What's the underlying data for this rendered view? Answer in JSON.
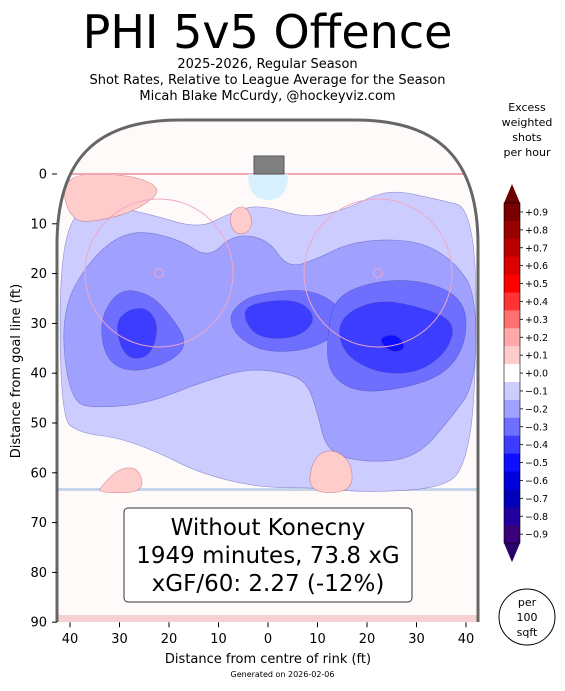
{
  "header": {
    "title": "PHI 5v5 Offence",
    "subtitle_1": "2025-2026, Regular Season",
    "subtitle_2": "Shot Rates, Relative to League Average for the Season",
    "subtitle_3": "Micah Blake McCurdy, @hockeyviz.com"
  },
  "footer": {
    "generated": "Generated on 2026-02-06"
  },
  "colorbar": {
    "title_lines": [
      "Excess",
      "weighted",
      "shots",
      "per hour"
    ],
    "ticks": [
      "+0.9",
      "+0.8",
      "+0.7",
      "+0.6",
      "+0.5",
      "+0.4",
      "+0.3",
      "+0.2",
      "+0.1",
      "+0.0",
      "−0.1",
      "−0.2",
      "−0.3",
      "−0.4",
      "−0.5",
      "−0.6",
      "−0.7",
      "−0.8",
      "−0.9"
    ],
    "colors": [
      "#780000",
      "#990000",
      "#bb0000",
      "#dd0000",
      "#ff0000",
      "#ff3333",
      "#ff7070",
      "#ffa8a8",
      "#ffcccc",
      "#ffffff",
      "#ccccff",
      "#a0a0ff",
      "#6f6fff",
      "#3d3dff",
      "#0f0fff",
      "#0000dd",
      "#0000bb",
      "#22009f",
      "#3a0078"
    ],
    "top_color": "#6a0000",
    "bottom_color": "#2a006a"
  },
  "badge": {
    "lines": [
      "per",
      "100",
      "sqft"
    ]
  },
  "infobox": {
    "line1": "Without Konecny",
    "line2": "1949 minutes, 73.8 xG",
    "line3": "xGF/60: 2.27 (-12%)"
  },
  "chart_data": {
    "type": "heatmap",
    "title": "PHI 5v5 Offence",
    "xlabel": "Distance from centre of rink (ft)",
    "ylabel": "Distance from goal line (ft)",
    "xlim": [
      -42.5,
      42.5
    ],
    "ylim": [
      90,
      -11
    ],
    "x_ticks": [
      -40,
      -30,
      -20,
      -10,
      0,
      10,
      20,
      30,
      40
    ],
    "x_tick_labels": [
      "40",
      "30",
      "20",
      "10",
      "0",
      "10",
      "20",
      "30",
      "40"
    ],
    "y_ticks": [
      0,
      10,
      20,
      30,
      40,
      50,
      60,
      70,
      80,
      90
    ],
    "y_tick_labels": [
      "0",
      "10",
      "20",
      "30",
      "40",
      "50",
      "60",
      "70",
      "80",
      "90"
    ],
    "value_unit": "Excess weighted shots per hour per 100 sqft",
    "levels": [
      0.9,
      0.8,
      0.7,
      0.6,
      0.5,
      0.4,
      0.3,
      0.2,
      0.1,
      0.0,
      -0.1,
      -0.2,
      -0.3,
      -0.4,
      -0.5,
      -0.6,
      -0.7,
      -0.8,
      -0.9
    ],
    "regions": [
      {
        "level": -0.1,
        "points": [
          [
            -42,
            10
          ],
          [
            -34,
            6
          ],
          [
            -24,
            8
          ],
          [
            -14,
            11
          ],
          [
            -8,
            8
          ],
          [
            -2,
            6
          ],
          [
            8,
            9
          ],
          [
            16,
            7
          ],
          [
            24,
            3
          ],
          [
            34,
            5
          ],
          [
            42,
            7
          ],
          [
            42,
            44
          ],
          [
            40,
            58
          ],
          [
            36,
            63
          ],
          [
            20,
            64
          ],
          [
            10,
            63
          ],
          [
            -2,
            63
          ],
          [
            -14,
            60
          ],
          [
            -22,
            56
          ],
          [
            -30,
            53
          ],
          [
            -38,
            52
          ],
          [
            -42,
            49
          ]
        ]
      },
      {
        "level": -0.2,
        "points": [
          [
            -42,
            28
          ],
          [
            -36,
            17
          ],
          [
            -28,
            11
          ],
          [
            -18,
            13
          ],
          [
            -12,
            17
          ],
          [
            -7,
            12
          ],
          [
            0,
            13
          ],
          [
            4,
            19
          ],
          [
            10,
            17
          ],
          [
            16,
            14
          ],
          [
            24,
            13
          ],
          [
            32,
            14
          ],
          [
            38,
            18
          ],
          [
            42,
            24
          ],
          [
            42,
            42
          ],
          [
            37,
            49
          ],
          [
            30,
            57
          ],
          [
            20,
            58
          ],
          [
            12,
            56
          ],
          [
            10,
            48
          ],
          [
            8,
            42
          ],
          [
            4,
            40
          ],
          [
            -4,
            39
          ],
          [
            -14,
            42
          ],
          [
            -24,
            46
          ],
          [
            -34,
            47
          ],
          [
            -40,
            46
          ]
        ]
      },
      {
        "level": -0.3,
        "points": [
          [
            -34,
            29
          ],
          [
            -30,
            23
          ],
          [
            -24,
            24
          ],
          [
            -20,
            28
          ],
          [
            -16,
            34
          ],
          [
            -20,
            38
          ],
          [
            -28,
            40
          ],
          [
            -33,
            37
          ]
        ]
      },
      {
        "level": -0.3,
        "points": [
          [
            -6,
            26
          ],
          [
            -2,
            24
          ],
          [
            8,
            23
          ],
          [
            14,
            26
          ],
          [
            16,
            30
          ],
          [
            10,
            35
          ],
          [
            0,
            36
          ],
          [
            -6,
            33
          ],
          [
            -8,
            29
          ]
        ]
      },
      {
        "level": -0.3,
        "points": [
          [
            14,
            24
          ],
          [
            24,
            21
          ],
          [
            34,
            22
          ],
          [
            40,
            26
          ],
          [
            40,
            34
          ],
          [
            36,
            40
          ],
          [
            28,
            43
          ],
          [
            18,
            44
          ],
          [
            12,
            40
          ],
          [
            12,
            31
          ]
        ]
      },
      {
        "level": -0.4,
        "points": [
          [
            -31,
            30
          ],
          [
            -28,
            27
          ],
          [
            -24,
            27
          ],
          [
            -22,
            31
          ],
          [
            -24,
            37
          ],
          [
            -29,
            37
          ]
        ]
      },
      {
        "level": -0.4,
        "points": [
          [
            -4,
            26
          ],
          [
            6,
            25
          ],
          [
            10,
            29
          ],
          [
            6,
            33
          ],
          [
            -2,
            33
          ],
          [
            -5,
            29
          ]
        ]
      },
      {
        "level": -0.4,
        "points": [
          [
            14,
            29
          ],
          [
            22,
            25
          ],
          [
            32,
            27
          ],
          [
            38,
            30
          ],
          [
            36,
            36
          ],
          [
            30,
            40
          ],
          [
            22,
            40
          ],
          [
            15,
            36
          ]
        ]
      },
      {
        "level": -0.5,
        "points": [
          [
            22,
            33
          ],
          [
            26,
            32
          ],
          [
            28,
            35
          ],
          [
            25,
            36
          ]
        ]
      },
      {
        "level": 0.1,
        "points": [
          [
            -42,
            0
          ],
          [
            -28,
            0
          ],
          [
            -21,
            3
          ],
          [
            -26,
            7
          ],
          [
            -32,
            9
          ],
          [
            -40,
            10
          ]
        ]
      },
      {
        "level": 0.1,
        "points": [
          [
            -8,
            8
          ],
          [
            -5,
            6
          ],
          [
            -3,
            9
          ],
          [
            -4,
            12
          ],
          [
            -7,
            12
          ]
        ]
      },
      {
        "level": 0.1,
        "points": [
          [
            -34,
            63
          ],
          [
            -30,
            59
          ],
          [
            -26,
            59
          ],
          [
            -25,
            64
          ],
          [
            -34,
            64
          ]
        ]
      },
      {
        "level": 0.1,
        "points": [
          [
            8,
            64
          ],
          [
            9,
            57
          ],
          [
            13,
            55
          ],
          [
            17,
            58
          ],
          [
            17,
            64
          ]
        ]
      }
    ]
  }
}
